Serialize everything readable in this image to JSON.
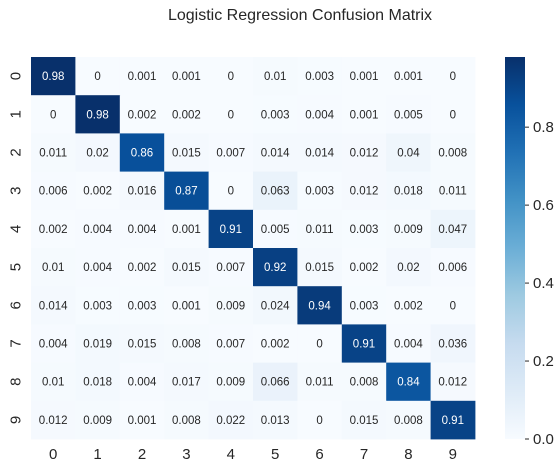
{
  "chart_data": {
    "type": "heatmap",
    "title": "Logistic Regression Confusion Matrix",
    "x_labels": [
      "0",
      "1",
      "2",
      "3",
      "4",
      "5",
      "6",
      "7",
      "8",
      "9"
    ],
    "y_labels": [
      "0",
      "1",
      "2",
      "3",
      "4",
      "5",
      "6",
      "7",
      "8",
      "9"
    ],
    "values": [
      [
        "0.98",
        "0",
        "0.001",
        "0.001",
        "0",
        "0.01",
        "0.003",
        "0.001",
        "0.001",
        "0"
      ],
      [
        "0",
        "0.98",
        "0.002",
        "0.002",
        "0",
        "0.003",
        "0.004",
        "0.001",
        "0.005",
        "0"
      ],
      [
        "0.011",
        "0.02",
        "0.86",
        "0.015",
        "0.007",
        "0.014",
        "0.014",
        "0.012",
        "0.04",
        "0.008"
      ],
      [
        "0.006",
        "0.002",
        "0.016",
        "0.87",
        "0",
        "0.063",
        "0.003",
        "0.012",
        "0.018",
        "0.011"
      ],
      [
        "0.002",
        "0.004",
        "0.004",
        "0.001",
        "0.91",
        "0.005",
        "0.011",
        "0.003",
        "0.009",
        "0.047"
      ],
      [
        "0.01",
        "0.004",
        "0.002",
        "0.015",
        "0.007",
        "0.92",
        "0.015",
        "0.002",
        "0.02",
        "0.006"
      ],
      [
        "0.014",
        "0.003",
        "0.003",
        "0.001",
        "0.009",
        "0.024",
        "0.94",
        "0.003",
        "0.002",
        "0"
      ],
      [
        "0.004",
        "0.019",
        "0.015",
        "0.008",
        "0.007",
        "0.002",
        "0",
        "0.91",
        "0.004",
        "0.036"
      ],
      [
        "0.01",
        "0.018",
        "0.004",
        "0.017",
        "0.009",
        "0.066",
        "0.011",
        "0.008",
        "0.84",
        "0.012"
      ],
      [
        "0.012",
        "0.009",
        "0.001",
        "0.008",
        "0.022",
        "0.013",
        "0",
        "0.015",
        "0.008",
        "0.91"
      ]
    ],
    "colormap": "Blues",
    "colorbar": {
      "range": [
        0,
        0.98
      ],
      "ticks": [
        "0.0",
        "0.2",
        "0.4",
        "0.6",
        "0.8"
      ],
      "tick_values": [
        0,
        0.2,
        0.4,
        0.6,
        0.8
      ]
    },
    "grid": false
  }
}
